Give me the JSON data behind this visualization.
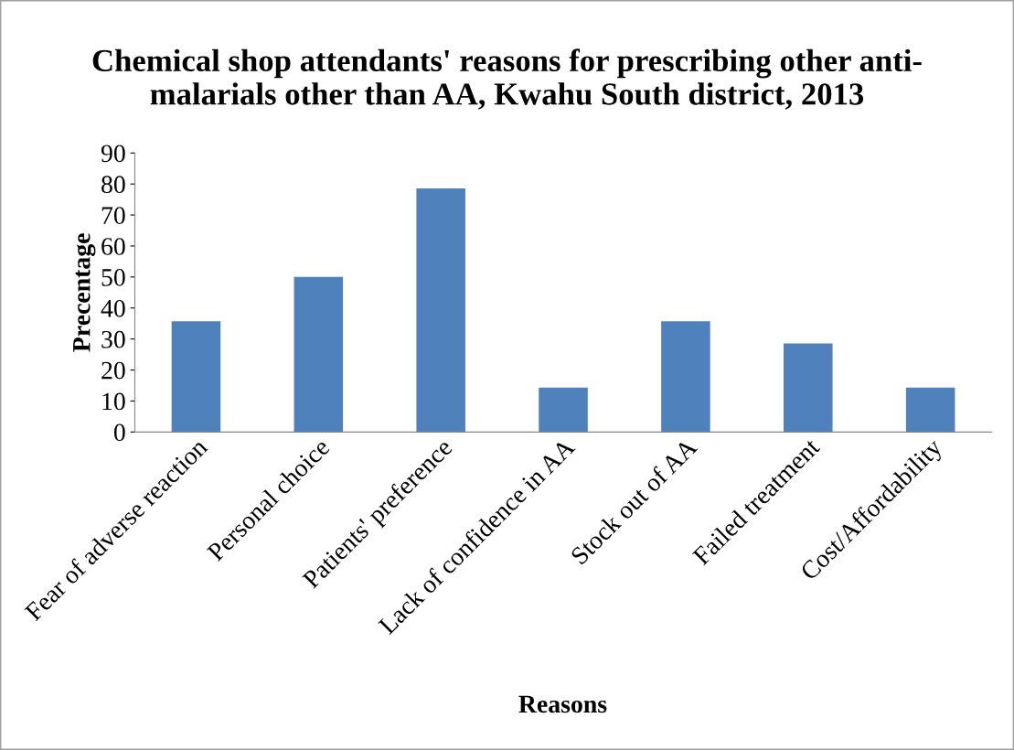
{
  "chart_data": {
    "type": "bar",
    "title": "Chemical shop attendants' reasons for prescribing other anti-\nmalarials other than AA, Kwahu South district, 2013",
    "xlabel": "Reasons",
    "ylabel": "Precentage",
    "categories": [
      "Fear of adverse reaction",
      "Personal choice",
      "Patients' preference",
      "Lack of confidence in AA",
      "Stock out of AA",
      "Failed treatment",
      "Cost/Affordability"
    ],
    "values": [
      35.7,
      50,
      78.6,
      14.3,
      35.7,
      28.6,
      14.3
    ],
    "color": "#4f81bd",
    "ylim": [
      0,
      90
    ],
    "yticks": [
      0,
      10,
      20,
      30,
      40,
      50,
      60,
      70,
      80,
      90
    ],
    "grid": false,
    "legend": false
  }
}
